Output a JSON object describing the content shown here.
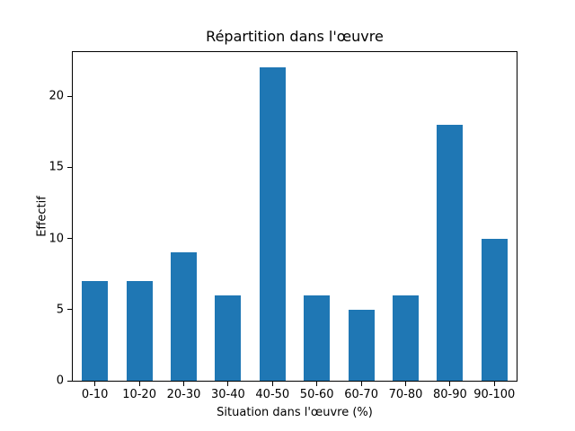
{
  "chart_data": {
    "type": "bar",
    "title": "Répartition dans l'œuvre",
    "xlabel": "Situation dans l'œuvre (%)",
    "ylabel": "Effectif",
    "categories": [
      "0-10",
      "10-20",
      "20-30",
      "30-40",
      "40-50",
      "50-60",
      "60-70",
      "70-80",
      "80-90",
      "90-100"
    ],
    "values": [
      7,
      7,
      9,
      6,
      22,
      6,
      5,
      6,
      18,
      10
    ],
    "yticks": [
      0,
      5,
      10,
      15,
      20
    ],
    "ylim": [
      0,
      23.1
    ],
    "bar_color": "#1f77b4",
    "axis_color": "#000000",
    "background_color": "#ffffff",
    "grid": false,
    "legend_position": "none"
  }
}
